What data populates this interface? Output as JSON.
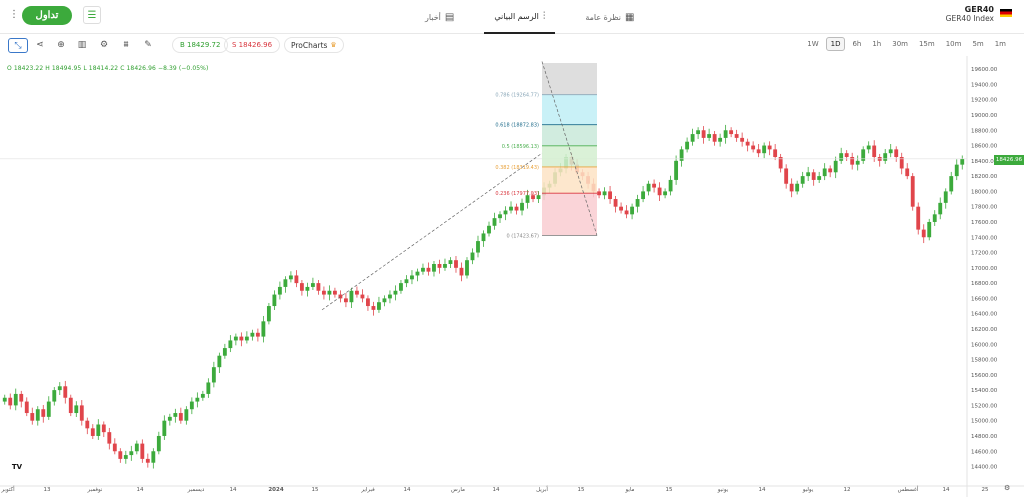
{
  "header": {
    "trade_label": "تداول",
    "tabs": [
      {
        "label": "نظرة عامة",
        "icon": "grid-icon"
      },
      {
        "label": "الرسم البياني",
        "icon": "candles-icon",
        "active": true
      },
      {
        "label": "أخبار",
        "icon": "news-icon"
      }
    ],
    "symbol_code": "GER40",
    "symbol_name": "GER40 Index"
  },
  "toolbar": {
    "buy_label": "B 18429.72",
    "sell_label": "S 18426.96",
    "prochart_label": "ProCharts",
    "timeframes": [
      "1m",
      "5m",
      "10m",
      "15m",
      "30m",
      "1h",
      "6h",
      "1D",
      "1W"
    ],
    "active_timeframe": "1D"
  },
  "ohlc": "O 18423.22  H 18494.95  L 18414.22  C 18426.96  −8.39 (−0.05%)",
  "current_price": "18426.96",
  "chart_data": {
    "type": "candlestick",
    "y_ticks": [
      14400,
      14600,
      14800,
      15000,
      15200,
      15400,
      15600,
      15800,
      16000,
      16200,
      16400,
      16600,
      16800,
      17000,
      17200,
      17400,
      17600,
      17800,
      18000,
      18200,
      18400,
      18600,
      18800,
      19000,
      19200,
      19400,
      19600
    ],
    "y_tick_labels": [
      "14400.00",
      "14600.00",
      "14800.00",
      "15000.00",
      "15200.00",
      "15400.00",
      "15600.00",
      "15800.00",
      "16000.00",
      "16200.00",
      "16400.00",
      "16600.00",
      "16800.00",
      "17000.00",
      "17200.00",
      "17400.00",
      "17600.00",
      "17800.00",
      "18000.00",
      "18200.00",
      "18400.00",
      "18600.00",
      "18800.00",
      "19000.00",
      "19200.00",
      "19400.00",
      "19600.00"
    ],
    "ylim": [
      14250,
      19680
    ],
    "x_labels": [
      "أكتوبر",
      "13",
      "نوفمبر",
      "14",
      "ديسمبر",
      "14",
      "2024",
      "15",
      "فبراير",
      "14",
      "مارس",
      "14",
      "أبريل",
      "15",
      "مايو",
      "15",
      "يونيو",
      "14",
      "يوليو",
      "12",
      "أغسطس",
      "14",
      "25"
    ],
    "fib_levels": [
      {
        "label": "0.786 (19264.77)",
        "value": 19264.77,
        "color": "#8aa7b8"
      },
      {
        "label": "0.618 (18872.83)",
        "value": 18872.83,
        "color": "#1e6b8a"
      },
      {
        "label": "0.5 (18596.13)",
        "value": 18596.13,
        "color": "#4caf50"
      },
      {
        "label": "0.382 (18319.43)",
        "value": 18319.43,
        "color": "#e9a23b"
      },
      {
        "label": "0.236 (17977.03)",
        "value": 17977.03,
        "color": "#d9363e"
      },
      {
        "label": "0 (17423.67)",
        "value": 17423.67,
        "color": "#888888"
      }
    ],
    "closes": [
      15300,
      15200,
      15350,
      15250,
      15100,
      15000,
      15150,
      15050,
      15250,
      15400,
      15450,
      15300,
      15100,
      15200,
      15000,
      14900,
      14800,
      14950,
      14850,
      14700,
      14600,
      14500,
      14550,
      14600,
      14700,
      14500,
      14450,
      14600,
      14800,
      15000,
      15050,
      15100,
      15000,
      15150,
      15250,
      15300,
      15350,
      15500,
      15700,
      15850,
      15950,
      16050,
      16100,
      16050,
      16100,
      16150,
      16100,
      16300,
      16500,
      16650,
      16750,
      16850,
      16900,
      16800,
      16700,
      16750,
      16800,
      16700,
      16650,
      16700,
      16650,
      16600,
      16550,
      16700,
      16650,
      16600,
      16500,
      16450,
      16550,
      16600,
      16650,
      16700,
      16800,
      16850,
      16900,
      16950,
      17000,
      16950,
      17050,
      17000,
      17050,
      17100,
      17000,
      16900,
      17100,
      17200,
      17350,
      17450,
      17550,
      17650,
      17700,
      17750,
      17800,
      17750,
      17850,
      17950,
      17900,
      17950,
      18050,
      18100,
      18250,
      18300,
      18450,
      18350,
      18250,
      18200,
      18100,
      18000,
      17950,
      18000,
      17900,
      17800,
      17750,
      17700,
      17800,
      17900,
      18000,
      18100,
      18050,
      17950,
      18000,
      18150,
      18400,
      18550,
      18650,
      18750,
      18800,
      18700,
      18750,
      18650,
      18700,
      18800,
      18750,
      18700,
      18650,
      18600,
      18550,
      18500,
      18600,
      18550,
      18450,
      18300,
      18100,
      18000,
      18100,
      18200,
      18250,
      18150,
      18200,
      18300,
      18250,
      18400,
      18500,
      18450,
      18350,
      18400,
      18550,
      18600,
      18450,
      18400,
      18500,
      18550,
      18450,
      18300,
      18200,
      17800,
      17500,
      17400,
      17600,
      17700,
      17850,
      18000,
      18200,
      18350,
      18430
    ]
  }
}
